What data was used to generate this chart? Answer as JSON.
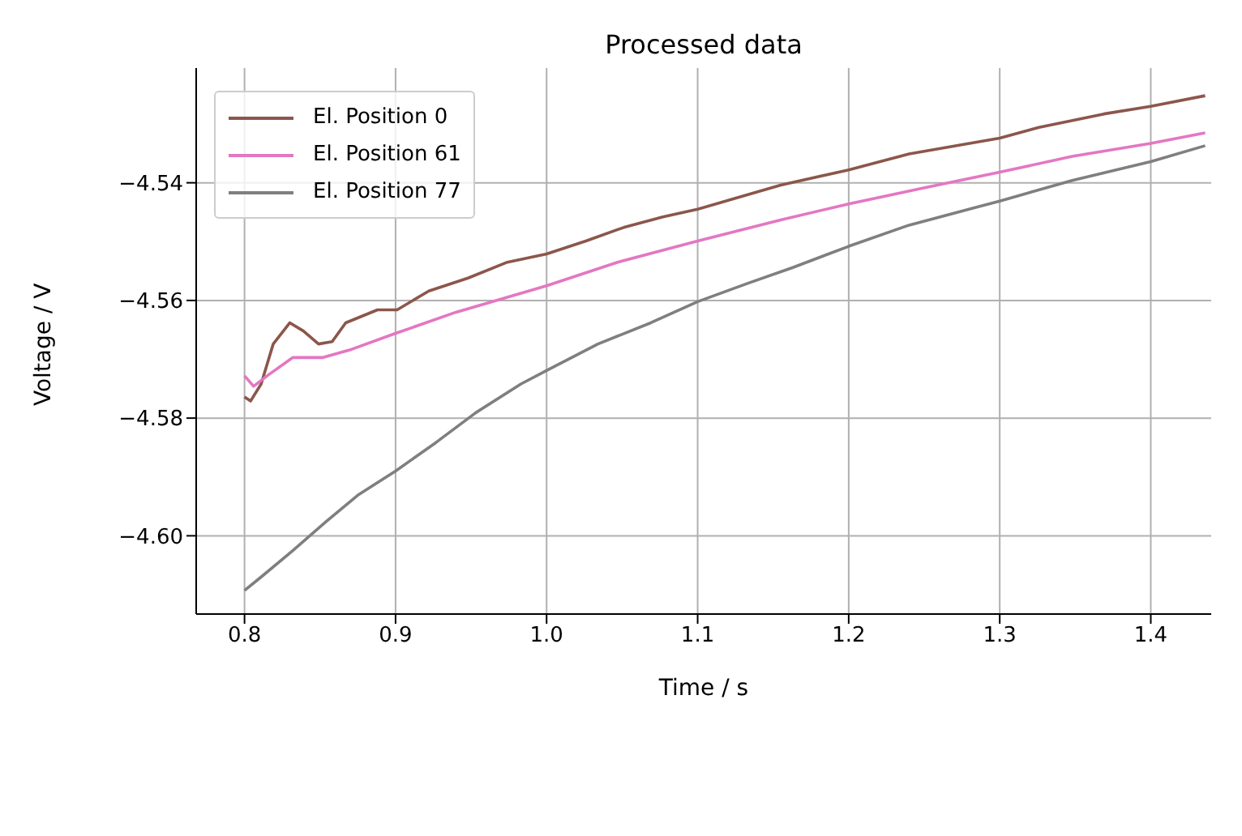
{
  "chart_data": {
    "type": "line",
    "title": "Processed data",
    "xlabel": "Time / s",
    "ylabel": "Voltage / V",
    "xlim": [
      0.768,
      1.44
    ],
    "ylim": [
      -4.6133,
      -4.5205
    ],
    "xticks": [
      {
        "value": 0.8,
        "label": "0.8"
      },
      {
        "value": 0.9,
        "label": "0.9"
      },
      {
        "value": 1.0,
        "label": "1.0"
      },
      {
        "value": 1.1,
        "label": "1.1"
      },
      {
        "value": 1.2,
        "label": "1.2"
      },
      {
        "value": 1.3,
        "label": "1.3"
      },
      {
        "value": 1.4,
        "label": "1.4"
      }
    ],
    "yticks": [
      {
        "value": -4.6,
        "label": "−4.60"
      },
      {
        "value": -4.58,
        "label": "−4.58"
      },
      {
        "value": -4.56,
        "label": "−4.56"
      },
      {
        "value": -4.54,
        "label": "−4.54"
      }
    ],
    "grid": true,
    "legend": "top left",
    "marker": "none",
    "line_style": "solid",
    "series": [
      {
        "name": "El. Position 0",
        "color": "#8c564b",
        "x": [
          0.8,
          0.804,
          0.811,
          0.819,
          0.83,
          0.839,
          0.849,
          0.858,
          0.867,
          0.888,
          0.901,
          0.922,
          0.948,
          0.974,
          1.0,
          1.026,
          1.051,
          1.077,
          1.1,
          1.124,
          1.155,
          1.2,
          1.24,
          1.3,
          1.326,
          1.369,
          1.4,
          1.436
        ],
        "values": [
          -4.5764,
          -4.5771,
          -4.5742,
          -4.5674,
          -4.5638,
          -4.5652,
          -4.5674,
          -4.567,
          -4.5638,
          -4.5616,
          -4.5616,
          -4.5584,
          -4.5562,
          -4.5535,
          -4.5521,
          -4.5499,
          -4.5476,
          -4.5458,
          -4.5445,
          -4.5427,
          -4.5404,
          -4.5378,
          -4.5351,
          -4.5324,
          -4.5306,
          -4.5283,
          -4.527,
          -4.5252
        ]
      },
      {
        "name": "El. Position 61",
        "color": "#e377c2",
        "x": [
          0.8,
          0.806,
          0.815,
          0.832,
          0.852,
          0.871,
          0.9,
          0.94,
          1.0,
          1.047,
          1.1,
          1.155,
          1.2,
          1.249,
          1.3,
          1.348,
          1.4,
          1.436
        ],
        "values": [
          -4.5728,
          -4.5746,
          -4.5728,
          -4.5697,
          -4.5697,
          -4.5683,
          -4.5656,
          -4.562,
          -4.5575,
          -4.5535,
          -4.5499,
          -4.5463,
          -4.5436,
          -4.5409,
          -4.5382,
          -4.5355,
          -4.5333,
          -4.5315
        ]
      },
      {
        "name": "El. Position 77",
        "color": "#7f7f7f",
        "x": [
          0.8,
          0.811,
          0.832,
          0.854,
          0.875,
          0.9,
          0.927,
          0.953,
          0.983,
          1.0,
          1.034,
          1.069,
          1.1,
          1.133,
          1.163,
          1.2,
          1.24,
          1.3,
          1.348,
          1.4,
          1.436
        ],
        "values": [
          -4.6093,
          -4.607,
          -4.6025,
          -4.5976,
          -4.5931,
          -4.589,
          -4.5841,
          -4.5791,
          -4.5742,
          -4.5719,
          -4.5674,
          -4.5638,
          -4.5602,
          -4.5571,
          -4.5544,
          -4.5508,
          -4.5472,
          -4.5431,
          -4.5396,
          -4.5364,
          -4.5337
        ]
      }
    ]
  }
}
